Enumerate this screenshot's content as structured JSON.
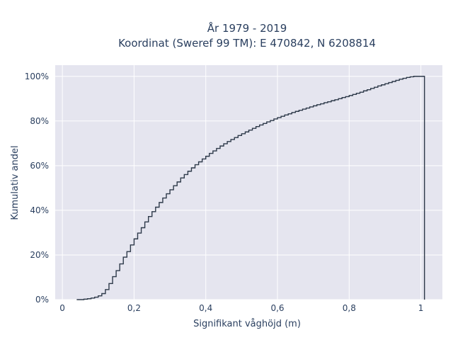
{
  "chart_data": {
    "type": "line",
    "step": true,
    "title_lines": [
      "År 1979 - 2019",
      "Koordinat (Sweref 99 TM): E 470842, N 6208814"
    ],
    "xlabel": "Signifikant våghöjd (m)",
    "ylabel": "Kumulativ andel",
    "xlim": [
      -0.02,
      1.06
    ],
    "ylim": [
      0,
      1.05
    ],
    "x_ticks": [
      0,
      0.2,
      0.4,
      0.6,
      0.8,
      1
    ],
    "x_tick_labels": [
      "0",
      "0,2",
      "0,4",
      "0,6",
      "0,8",
      "1"
    ],
    "y_ticks": [
      0,
      0.2,
      0.4,
      0.6,
      0.8,
      1
    ],
    "y_tick_labels": [
      "0%",
      "20%",
      "40%",
      "60%",
      "80%",
      "100%"
    ],
    "grid": true,
    "plot_background": "#e5e5ef",
    "line_color": "#2e3a4a",
    "series": [
      {
        "x": [
          0.04,
          0.06,
          0.07,
          0.08,
          0.09,
          0.1,
          0.11,
          0.12,
          0.13,
          0.14,
          0.15,
          0.16,
          0.17,
          0.18,
          0.19,
          0.2,
          0.21,
          0.22,
          0.23,
          0.24,
          0.25,
          0.26,
          0.27,
          0.28,
          0.29,
          0.3,
          0.31,
          0.32,
          0.33,
          0.34,
          0.35,
          0.36,
          0.37,
          0.38,
          0.39,
          0.4,
          0.41,
          0.42,
          0.43,
          0.44,
          0.45,
          0.46,
          0.47,
          0.48,
          0.49,
          0.5,
          0.51,
          0.52,
          0.53,
          0.54,
          0.55,
          0.56,
          0.57,
          0.58,
          0.59,
          0.6,
          0.61,
          0.62,
          0.63,
          0.64,
          0.65,
          0.66,
          0.67,
          0.68,
          0.69,
          0.7,
          0.71,
          0.72,
          0.73,
          0.74,
          0.75,
          0.76,
          0.77,
          0.78,
          0.79,
          0.8,
          0.81,
          0.82,
          0.83,
          0.84,
          0.85,
          0.86,
          0.87,
          0.88,
          0.89,
          0.9,
          0.91,
          0.92,
          0.93,
          0.94,
          0.95,
          0.96,
          0.97,
          0.98,
          0.99,
          1.0,
          1.01
        ],
        "y": [
          0.0,
          0.002,
          0.004,
          0.007,
          0.011,
          0.017,
          0.027,
          0.045,
          0.072,
          0.103,
          0.13,
          0.16,
          0.19,
          0.215,
          0.245,
          0.272,
          0.298,
          0.322,
          0.348,
          0.372,
          0.394,
          0.414,
          0.435,
          0.455,
          0.474,
          0.492,
          0.51,
          0.527,
          0.545,
          0.56,
          0.575,
          0.59,
          0.604,
          0.617,
          0.63,
          0.642,
          0.655,
          0.666,
          0.677,
          0.688,
          0.698,
          0.708,
          0.717,
          0.726,
          0.735,
          0.743,
          0.751,
          0.759,
          0.767,
          0.775,
          0.782,
          0.789,
          0.796,
          0.802,
          0.809,
          0.815,
          0.821,
          0.827,
          0.832,
          0.838,
          0.843,
          0.848,
          0.853,
          0.858,
          0.863,
          0.868,
          0.873,
          0.877,
          0.882,
          0.886,
          0.891,
          0.895,
          0.9,
          0.905,
          0.909,
          0.914,
          0.919,
          0.924,
          0.929,
          0.935,
          0.94,
          0.946,
          0.951,
          0.957,
          0.962,
          0.967,
          0.972,
          0.977,
          0.982,
          0.987,
          0.991,
          0.995,
          0.998,
          1.0,
          1.0,
          1.0,
          0.0
        ]
      }
    ]
  }
}
